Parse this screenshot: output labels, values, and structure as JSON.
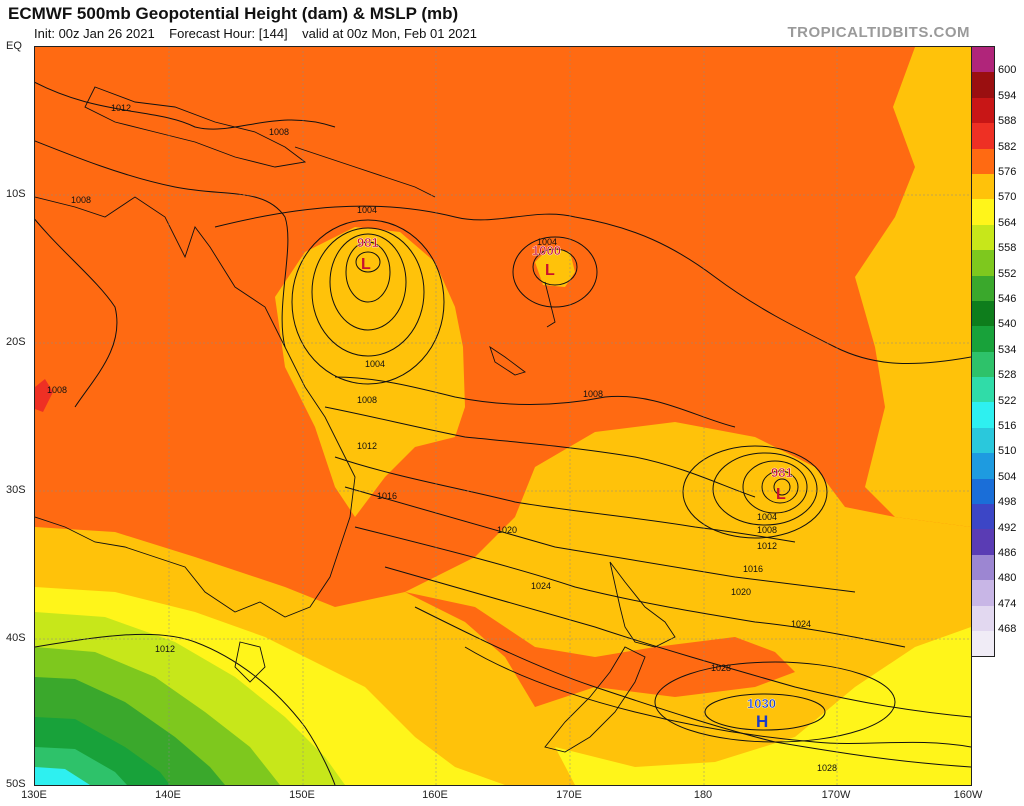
{
  "header": {
    "title": "ECMWF 500mb Geopotential Height (dam) & MSLP (mb)",
    "init": "Init: 00z Jan 26 2021",
    "forecast": "Forecast Hour: [144]",
    "valid": "valid at 00z Mon, Feb 01 2021",
    "brand": "TROPICALTIDBITS.COM"
  },
  "axes": {
    "lat_labels": [
      "EQ",
      "10S",
      "20S",
      "30S",
      "40S",
      "50S"
    ],
    "lon_labels": [
      "130E",
      "140E",
      "150E",
      "160E",
      "170E",
      "180",
      "170W",
      "160W"
    ]
  },
  "colorbar": {
    "ticks": [
      "600",
      "594",
      "588",
      "582",
      "576",
      "570",
      "564",
      "558",
      "552",
      "546",
      "540",
      "534",
      "528",
      "522",
      "516",
      "510",
      "504",
      "498",
      "492",
      "486",
      "480",
      "474",
      "468"
    ],
    "colors": [
      "#b0257a",
      "#9a0f10",
      "#c81616",
      "#ee3024",
      "#ff6a12",
      "#ffc20a",
      "#fff51a",
      "#c7e71a",
      "#7ec81e",
      "#3aa82c",
      "#0e7d1c",
      "#18a23a",
      "#2ec26a",
      "#30dca8",
      "#2ef0f0",
      "#2ac8dc",
      "#1e9be0",
      "#1a6ed8",
      "#3c46c6",
      "#5a3cb4",
      "#9c86d2",
      "#c8b6e6",
      "#e2d8f0",
      "#f0ecf6"
    ]
  },
  "annotations": {
    "low1_pressure": "981",
    "low1_symbol": "L",
    "low2_pressure": "1000",
    "low2_symbol": "L",
    "low3_pressure": "981",
    "low3_symbol": "L",
    "high_pressure": "1030",
    "high_symbol": "H"
  },
  "isobar_labels": [
    "1012",
    "1008",
    "1008",
    "1008",
    "1004",
    "1004",
    "1004",
    "1008",
    "1008",
    "1012",
    "1016",
    "1020",
    "1024",
    "1012",
    "1004",
    "1008",
    "1012",
    "1016",
    "1020",
    "1024",
    "1028",
    "1028",
    "1012"
  ]
}
